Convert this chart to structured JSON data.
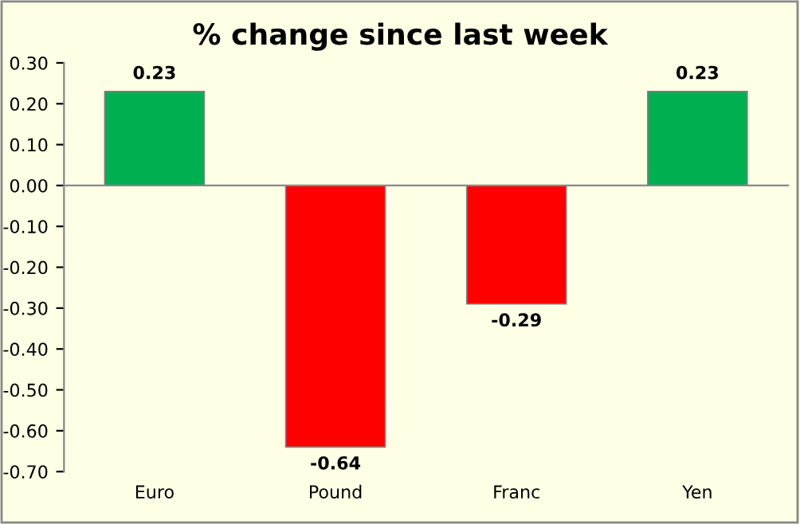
{
  "chart_data": {
    "type": "bar",
    "title": "% change since last week",
    "categories": [
      "Euro",
      "Pound",
      "Franc",
      "Yen"
    ],
    "values": [
      0.23,
      -0.64,
      -0.29,
      0.23
    ],
    "colors": [
      "#00b050",
      "#ff0000",
      "#ff0000",
      "#00b050"
    ],
    "ylim": [
      -0.7,
      0.3
    ],
    "yticks": [
      {
        "value": 0.3,
        "label": "0.30"
      },
      {
        "value": 0.2,
        "label": "0.20"
      },
      {
        "value": 0.1,
        "label": "0.10"
      },
      {
        "value": 0,
        "label": "0.00"
      },
      {
        "value": -0.1,
        "label": "-0.10"
      },
      {
        "value": -0.2,
        "label": "-0.20"
      },
      {
        "value": -0.3,
        "label": "-0.30"
      },
      {
        "value": -0.4,
        "label": "-0.40"
      },
      {
        "value": -0.5,
        "label": "-0.50"
      },
      {
        "value": -0.6,
        "label": "-0.60"
      },
      {
        "value": -0.7,
        "label": "-0.70"
      }
    ],
    "data_labels": true,
    "legend": false
  }
}
